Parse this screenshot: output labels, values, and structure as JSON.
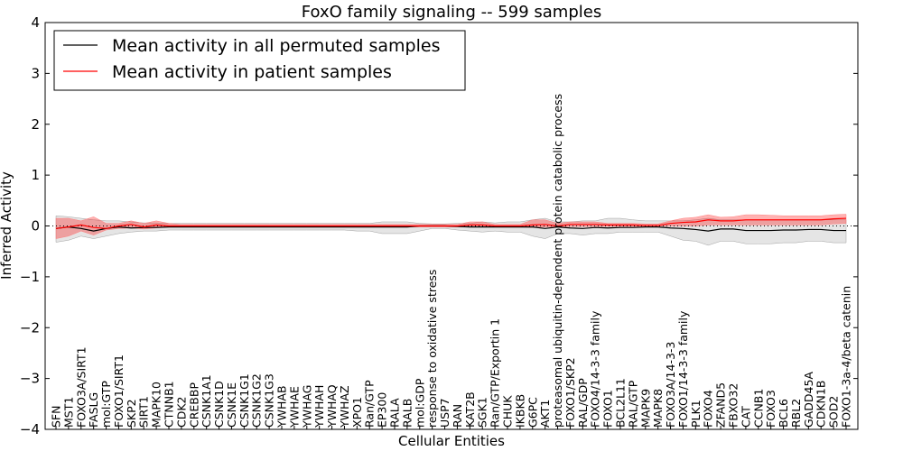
{
  "chart_data": {
    "type": "line",
    "title": "FoxO family signaling -- 599 samples",
    "xlabel": "Cellular Entities",
    "ylabel": "Inferred Activity",
    "ylim": [
      -4,
      4
    ],
    "yticks": [
      -4,
      -3,
      -2,
      -1,
      0,
      1,
      2,
      3,
      4
    ],
    "ytick_labels": [
      "−4",
      "−3",
      "−2",
      "−1",
      "0",
      "1",
      "2",
      "3",
      "4"
    ],
    "legend_position": "top-left",
    "categories": [
      "SFN",
      "MST1",
      "FOXO3A/SIRT1",
      "FASLG",
      "mol:GTP",
      "FOXO1/SIRT1",
      "SKP2",
      "SIRT1",
      "MAPK10",
      "CTNNB1",
      "CDK2",
      "CREBBP",
      "CSNK1A1",
      "CSNK1D",
      "CSNK1E",
      "CSNK1G1",
      "CSNK1G2",
      "CSNK1G3",
      "YWHAB",
      "YWHAE",
      "YWHAG",
      "YWHAH",
      "YWHAQ",
      "YWHAZ",
      "XPO1",
      "Ran/GTP",
      "EP300",
      "RALA",
      "RALB",
      "mol:GDP",
      "response to oxidative stress",
      "USP7",
      "RAN",
      "KAT2B",
      "SGK1",
      "Ran/GTP/Exportin 1",
      "CHUK",
      "IKBKB",
      "G6PC",
      "AKT1",
      "proteasomal ubiquitin-dependent protein catabolic process",
      "FOXO1/SKP2",
      "RAL/GDP",
      "FOXO4/14-3-3 family",
      "FOXO1",
      "BCL2L11",
      "RAL/GTP",
      "MAPK9",
      "MAPK8",
      "FOXO3A/14-3-3",
      "FOXO1/14-3-3 family",
      "PLK1",
      "FOXO4",
      "ZFAND5",
      "FBXO32",
      "CAT",
      "CCNB1",
      "FOXO3",
      "BCL6",
      "RBL2",
      "GADD45A",
      "CDKN1B",
      "SOD2",
      "FOXO1-3a-4/beta catenin"
    ],
    "series": [
      {
        "name": "Mean activity in all permuted samples",
        "color": "#000000",
        "values": [
          -0.05,
          -0.02,
          -0.05,
          -0.1,
          -0.05,
          -0.02,
          -0.04,
          -0.03,
          -0.03,
          -0.02,
          -0.02,
          -0.02,
          -0.02,
          -0.02,
          -0.02,
          -0.02,
          -0.02,
          -0.02,
          -0.02,
          -0.02,
          -0.02,
          -0.02,
          -0.02,
          -0.02,
          -0.02,
          -0.02,
          -0.02,
          -0.02,
          -0.02,
          0.0,
          0.0,
          0.0,
          -0.01,
          -0.02,
          -0.02,
          -0.02,
          -0.02,
          -0.02,
          -0.02,
          -0.05,
          -0.02,
          -0.04,
          -0.05,
          -0.03,
          -0.04,
          -0.03,
          -0.03,
          -0.02,
          -0.02,
          -0.04,
          -0.05,
          -0.07,
          -0.1,
          -0.06,
          -0.06,
          -0.09,
          -0.09,
          -0.09,
          -0.08,
          -0.08,
          -0.07,
          -0.07,
          -0.09,
          -0.09
        ],
        "band_low": [
          -0.32,
          -0.28,
          -0.2,
          -0.25,
          -0.2,
          -0.15,
          -0.12,
          -0.1,
          -0.1,
          -0.08,
          -0.08,
          -0.08,
          -0.08,
          -0.08,
          -0.08,
          -0.08,
          -0.08,
          -0.08,
          -0.08,
          -0.08,
          -0.08,
          -0.08,
          -0.08,
          -0.08,
          -0.1,
          -0.1,
          -0.15,
          -0.15,
          -0.15,
          -0.1,
          -0.05,
          -0.05,
          -0.08,
          -0.1,
          -0.12,
          -0.1,
          -0.12,
          -0.12,
          -0.2,
          -0.25,
          -0.15,
          -0.15,
          -0.18,
          -0.15,
          -0.15,
          -0.12,
          -0.12,
          -0.12,
          -0.12,
          -0.2,
          -0.28,
          -0.3,
          -0.38,
          -0.3,
          -0.3,
          -0.35,
          -0.35,
          -0.35,
          -0.33,
          -0.33,
          -0.3,
          -0.3,
          -0.33,
          -0.33
        ],
        "band_high": [
          0.2,
          0.18,
          0.15,
          0.12,
          0.1,
          0.1,
          0.08,
          0.06,
          0.06,
          0.05,
          0.05,
          0.05,
          0.05,
          0.05,
          0.05,
          0.05,
          0.05,
          0.05,
          0.05,
          0.05,
          0.05,
          0.05,
          0.05,
          0.05,
          0.05,
          0.05,
          0.08,
          0.08,
          0.08,
          0.05,
          0.04,
          0.04,
          0.05,
          0.05,
          0.08,
          0.06,
          0.08,
          0.08,
          0.12,
          0.15,
          0.08,
          0.08,
          0.1,
          0.1,
          0.15,
          0.15,
          0.12,
          0.1,
          0.1,
          0.1,
          0.1,
          0.12,
          0.15,
          0.12,
          0.12,
          0.12,
          0.12,
          0.12,
          0.12,
          0.12,
          0.12,
          0.12,
          0.12,
          0.12
        ]
      },
      {
        "name": "Mean activity in patient samples",
        "color": "#ff0000",
        "values": [
          -0.05,
          -0.02,
          0.02,
          -0.03,
          -0.05,
          0.0,
          0.03,
          -0.02,
          0.02,
          0.0,
          0.0,
          0.0,
          0.0,
          0.0,
          0.0,
          0.0,
          0.0,
          0.0,
          0.0,
          0.0,
          0.0,
          0.0,
          0.0,
          0.0,
          0.0,
          0.0,
          0.0,
          0.0,
          0.0,
          0.0,
          0.0,
          0.0,
          0.0,
          0.02,
          0.02,
          0.0,
          0.0,
          0.0,
          0.02,
          0.03,
          0.0,
          0.03,
          0.03,
          0.03,
          0.02,
          0.02,
          0.02,
          0.01,
          0.01,
          0.05,
          0.07,
          0.08,
          0.12,
          0.1,
          0.1,
          0.12,
          0.12,
          0.12,
          0.12,
          0.12,
          0.12,
          0.12,
          0.14,
          0.15
        ],
        "band_low": [
          -0.25,
          -0.2,
          -0.1,
          -0.18,
          -0.08,
          -0.05,
          -0.04,
          -0.06,
          -0.04,
          -0.02,
          -0.02,
          -0.02,
          -0.02,
          -0.02,
          -0.02,
          -0.02,
          -0.02,
          -0.02,
          -0.02,
          -0.02,
          -0.02,
          -0.02,
          -0.02,
          -0.02,
          -0.02,
          -0.02,
          -0.02,
          -0.02,
          -0.02,
          -0.02,
          -0.02,
          -0.02,
          -0.02,
          -0.02,
          -0.02,
          -0.02,
          -0.02,
          -0.02,
          -0.03,
          -0.02,
          -0.02,
          -0.01,
          -0.01,
          -0.01,
          -0.01,
          -0.01,
          -0.01,
          -0.01,
          -0.01,
          0.0,
          0.0,
          0.0,
          0.02,
          0.02,
          0.02,
          0.02,
          0.02,
          0.02,
          0.02,
          0.02,
          0.02,
          0.02,
          0.04,
          0.05
        ],
        "band_high": [
          0.15,
          0.15,
          0.1,
          0.18,
          0.05,
          0.05,
          0.1,
          0.05,
          0.1,
          0.05,
          0.03,
          0.03,
          0.03,
          0.03,
          0.03,
          0.03,
          0.03,
          0.03,
          0.03,
          0.03,
          0.03,
          0.03,
          0.03,
          0.03,
          0.03,
          0.03,
          0.03,
          0.03,
          0.03,
          0.03,
          0.03,
          0.03,
          0.03,
          0.08,
          0.08,
          0.03,
          0.03,
          0.03,
          0.12,
          0.12,
          0.05,
          0.08,
          0.08,
          0.08,
          0.05,
          0.05,
          0.05,
          0.04,
          0.04,
          0.1,
          0.15,
          0.17,
          0.22,
          0.17,
          0.18,
          0.22,
          0.22,
          0.21,
          0.2,
          0.2,
          0.2,
          0.2,
          0.22,
          0.23
        ]
      }
    ]
  }
}
